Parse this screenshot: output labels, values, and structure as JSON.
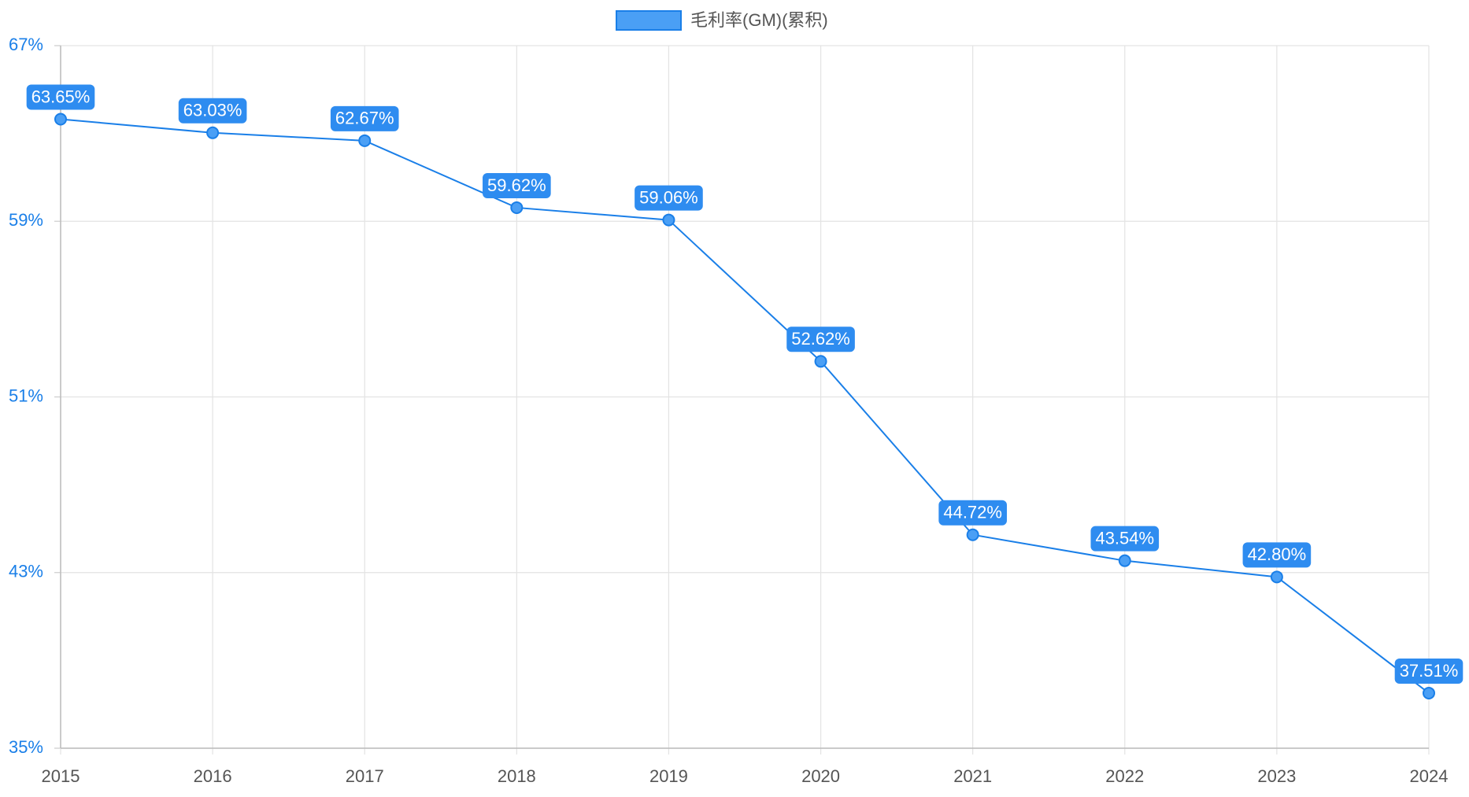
{
  "chart_data": {
    "type": "line",
    "categories": [
      "2015",
      "2016",
      "2017",
      "2018",
      "2019",
      "2020",
      "2021",
      "2022",
      "2023",
      "2024"
    ],
    "series": [
      {
        "name": "毛利率(GM)(累积)",
        "color": "#1a7fe8",
        "values": [
          63.65,
          63.03,
          62.67,
          59.62,
          59.06,
          52.62,
          44.72,
          43.54,
          42.8,
          37.51
        ],
        "value_labels": [
          "63.65%",
          "63.03%",
          "62.67%",
          "59.62%",
          "59.06%",
          "52.62%",
          "44.72%",
          "43.54%",
          "42.80%",
          "37.51%"
        ]
      }
    ],
    "ylim": [
      35,
      67
    ],
    "yticks": [
      {
        "value": 35,
        "label": "35%"
      },
      {
        "value": 43,
        "label": "43%"
      },
      {
        "value": 51,
        "label": "51%"
      },
      {
        "value": 59,
        "label": "59%"
      },
      {
        "value": 67,
        "label": "67%"
      }
    ],
    "grid": true,
    "legend": "top"
  }
}
